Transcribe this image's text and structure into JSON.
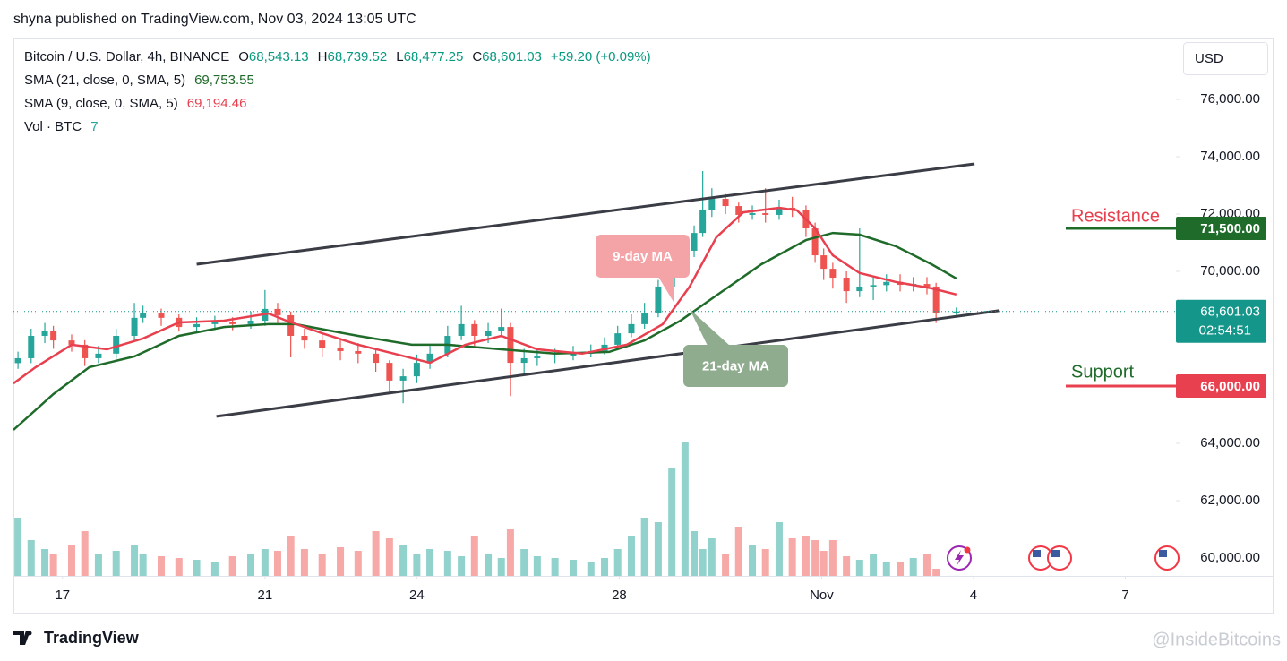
{
  "header": {
    "publisher": "shyna published on TradingView.com, Nov 03, 2024 13:05 UTC"
  },
  "legend": {
    "symbol": "Bitcoin / U.S. Dollar, 4h, BINANCE",
    "ohlc": [
      {
        "key": "O",
        "value": "68,543.13"
      },
      {
        "key": "H",
        "value": "68,739.52"
      },
      {
        "key": "L",
        "value": "68,477.25"
      },
      {
        "key": "C",
        "value": "68,601.03"
      }
    ],
    "change": "+59.20 (+0.09%)",
    "studies": [
      {
        "name": "SMA (21, close, 0, SMA, 5)",
        "value": "69,753.55"
      },
      {
        "name": "SMA (9, close, 0, SMA, 5)",
        "value": "69,194.46"
      }
    ],
    "volume_name": "Vol · BTC"
  },
  "currency": "USD",
  "footer": {
    "brand": "TradingView",
    "watermark": "@InsideBitcoins"
  },
  "chart_data": {
    "type": "candlestick",
    "up_color": "#26a69a",
    "down_color": "#ef5350",
    "x": [
      -0.88,
      -0.62,
      -0.35,
      -0.18,
      0.18,
      0.44,
      0.71,
      1.06,
      1.42,
      1.59,
      1.95,
      2.3,
      2.65,
      3.01,
      3.36,
      3.72,
      4.0,
      4.25,
      4.51,
      4.78,
      5.13,
      5.49,
      5.84,
      6.19,
      6.46,
      6.73,
      7.0,
      7.26,
      7.61,
      7.88,
      8.14,
      8.41,
      8.67,
      8.85,
      9.12,
      9.38,
      9.73,
      10.09,
      10.44,
      10.71,
      10.97,
      11.24,
      11.5,
      11.77,
      12.04,
      12.3,
      12.48,
      12.65,
      12.83,
      13.1,
      13.36,
      13.63,
      13.89,
      14.16,
      14.42,
      14.69,
      14.87,
      15.04,
      15.22,
      15.49,
      15.75,
      16.02,
      16.28,
      16.55,
      16.81,
      17.08,
      17.26,
      17.66
    ],
    "open": [
      66800,
      66970,
      67750,
      67910,
      67590,
      67440,
      66970,
      67130,
      67750,
      68380,
      68530,
      68380,
      68060,
      68160,
      68220,
      68160,
      68280,
      68690,
      68470,
      67750,
      67590,
      67340,
      67220,
      67130,
      66810,
      66190,
      66340,
      66810,
      67130,
      67750,
      68160,
      67750,
      67910,
      68060,
      66810,
      66970,
      67030,
      67060,
      67130,
      67220,
      67440,
      67840,
      68160,
      68530,
      69470,
      70090,
      70720,
      71340,
      72130,
      72530,
      72280,
      71970,
      72030,
      71970,
      72220,
      72130,
      71500,
      70560,
      70090,
      69780,
      69310,
      69470,
      69520,
      69630,
      69530,
      69560,
      69470,
      68543.13
    ],
    "high": [
      67200,
      68000,
      68200,
      68100,
      67800,
      67600,
      67400,
      68000,
      68900,
      68800,
      68700,
      68500,
      68400,
      68450,
      68400,
      68600,
      69350,
      68900,
      68600,
      68000,
      67800,
      67600,
      67500,
      67300,
      66900,
      66600,
      67100,
      67400,
      68100,
      68800,
      68300,
      68200,
      68700,
      68200,
      67300,
      67300,
      67300,
      67400,
      67450,
      67700,
      68100,
      68500,
      68900,
      69700,
      70400,
      71000,
      71600,
      73500,
      72900,
      72700,
      72400,
      72300,
      72900,
      72500,
      72600,
      72300,
      71700,
      70800,
      70300,
      70000,
      71500,
      69800,
      69900,
      69900,
      69800,
      69800,
      69600,
      68739.52
    ],
    "low": [
      66600,
      66800,
      67500,
      67300,
      67200,
      66700,
      66800,
      66950,
      67600,
      68200,
      68100,
      67900,
      67900,
      67950,
      67950,
      68000,
      68100,
      68200,
      67000,
      67300,
      67000,
      66900,
      66800,
      66500,
      65800,
      65400,
      66100,
      66600,
      67000,
      67600,
      67400,
      67500,
      67700,
      65650,
      66400,
      66700,
      66800,
      66900,
      67000,
      67100,
      67300,
      67700,
      68000,
      68400,
      69300,
      69900,
      70500,
      71200,
      71900,
      72000,
      71700,
      71800,
      71700,
      71800,
      71900,
      71200,
      70300,
      69700,
      69400,
      68900,
      69100,
      69000,
      69300,
      69300,
      69300,
      69200,
      68200,
      68477.25
    ],
    "close": [
      66970,
      67750,
      67910,
      67590,
      67440,
      66970,
      67130,
      67750,
      68380,
      68530,
      68380,
      68060,
      68160,
      68220,
      68160,
      68280,
      68690,
      68470,
      67750,
      67590,
      67340,
      67220,
      67130,
      66810,
      66190,
      66340,
      66810,
      67130,
      67750,
      68160,
      67750,
      67910,
      68060,
      66810,
      66970,
      67030,
      67060,
      67130,
      67220,
      67440,
      67840,
      68160,
      68530,
      69470,
      70090,
      70720,
      71340,
      72130,
      72530,
      72280,
      71970,
      72030,
      71970,
      72220,
      72130,
      71500,
      70560,
      70090,
      69780,
      69310,
      69470,
      69520,
      69630,
      69530,
      69560,
      69470,
      68540,
      68601.03
    ],
    "volume": [
      6500,
      4000,
      3000,
      2500,
      3500,
      5000,
      2500,
      2800,
      3500,
      2500,
      2200,
      2000,
      1800,
      1500,
      2200,
      2500,
      3000,
      2800,
      4500,
      3000,
      2500,
      3200,
      2800,
      5000,
      4200,
      3500,
      2500,
      3000,
      2800,
      2200,
      4500,
      2500,
      2000,
      5200,
      3000,
      2200,
      2000,
      1800,
      1500,
      2000,
      3000,
      4500,
      6500,
      6000,
      12000,
      15000,
      5000,
      3000,
      4200,
      2500,
      5500,
      3500,
      3000,
      6000,
      4200,
      4500,
      4000,
      2800,
      4000,
      2200,
      1800,
      2500,
      1500,
      1500,
      2000,
      2500,
      800,
      7
    ],
    "volume_lim": [
      0,
      20000
    ],
    "series": [
      {
        "name": "SMA 21",
        "color": "#1e6b2a",
        "x": [
          -0.97,
          -0.18,
          0.53,
          1.42,
          2.3,
          3.19,
          4.07,
          4.6,
          5.84,
          6.9,
          7.61,
          8.67,
          9.73,
          10.8,
          11.5,
          12.21,
          12.92,
          13.81,
          14.69,
          15.22,
          15.75,
          16.46,
          17.17,
          17.66
        ],
        "values": [
          64470,
          65720,
          66660,
          67030,
          67750,
          68060,
          68160,
          68160,
          67750,
          67440,
          67440,
          67280,
          67130,
          67190,
          67590,
          68280,
          69160,
          70250,
          71090,
          71340,
          71280,
          70880,
          70250,
          69753.55
        ]
      },
      {
        "name": "SMA 9",
        "color": "#e8404f",
        "x": [
          -0.97,
          -0.53,
          0.18,
          0.88,
          1.59,
          2.3,
          3.19,
          4.07,
          4.42,
          5.13,
          5.84,
          6.55,
          7.26,
          7.96,
          8.67,
          9.38,
          10.27,
          11.15,
          11.86,
          12.39,
          12.92,
          13.45,
          14.16,
          14.51,
          14.87,
          15.22,
          15.75,
          16.46,
          17.17,
          17.66
        ],
        "values": [
          66090,
          66660,
          67440,
          67280,
          67660,
          68220,
          68280,
          68530,
          68280,
          67840,
          67440,
          67130,
          66810,
          67440,
          67750,
          67280,
          67130,
          67440,
          68160,
          69470,
          71190,
          72060,
          72220,
          72130,
          71500,
          70560,
          69940,
          69630,
          69410,
          69194.46
        ]
      }
    ],
    "trend_lines": [
      {
        "color": "#3a3d45",
        "x": [
          2.65,
          18.02
        ],
        "y": [
          70250,
          73750
        ]
      },
      {
        "color": "#3a3d45",
        "x": [
          3.04,
          18.5
        ],
        "y": [
          64940,
          68630
        ]
      }
    ],
    "levels": [
      {
        "name": "Resistance",
        "value": 71500,
        "value_label": "71,500.00",
        "line_color": "#1e6b2a",
        "text_color": "#e8404f"
      },
      {
        "name": "Support",
        "value": 66000,
        "value_label": "66,000.00",
        "line_color": "#e8404f",
        "text_color": "#1e6b2a"
      }
    ],
    "callouts": [
      {
        "text": "9-day MA",
        "color": "#f4a3a6"
      },
      {
        "text": "21-day MA",
        "color": "#8fac8f"
      }
    ],
    "last_price": {
      "value": 68601.03,
      "label": "68,601.03",
      "countdown": "02:54:51",
      "color": "#15968a"
    },
    "xlim": [
      -0.97,
      22.0
    ],
    "xticks": [
      {
        "value": 0,
        "label": "17"
      },
      {
        "value": 4,
        "label": "21"
      },
      {
        "value": 7,
        "label": "24"
      },
      {
        "value": 11,
        "label": "28"
      },
      {
        "value": 15,
        "label": "Nov"
      },
      {
        "value": 18,
        "label": "4"
      },
      {
        "value": 21,
        "label": "7"
      }
    ],
    "ylim": [
      59375,
      78156
    ],
    "yticks": [
      {
        "value": 60000,
        "label": "60,000.00"
      },
      {
        "value": 62000,
        "label": "62,000.00"
      },
      {
        "value": 64000,
        "label": "64,000.00"
      },
      {
        "value": 66000,
        "label": "66,000.00"
      },
      {
        "value": 68000,
        "label": "68,000.00"
      },
      {
        "value": 70000,
        "label": "70,000.00"
      },
      {
        "value": 72000,
        "label": "72,000.00"
      },
      {
        "value": 74000,
        "label": "74,000.00"
      },
      {
        "value": 76000,
        "label": "76,000.00"
      }
    ],
    "grid": false
  }
}
